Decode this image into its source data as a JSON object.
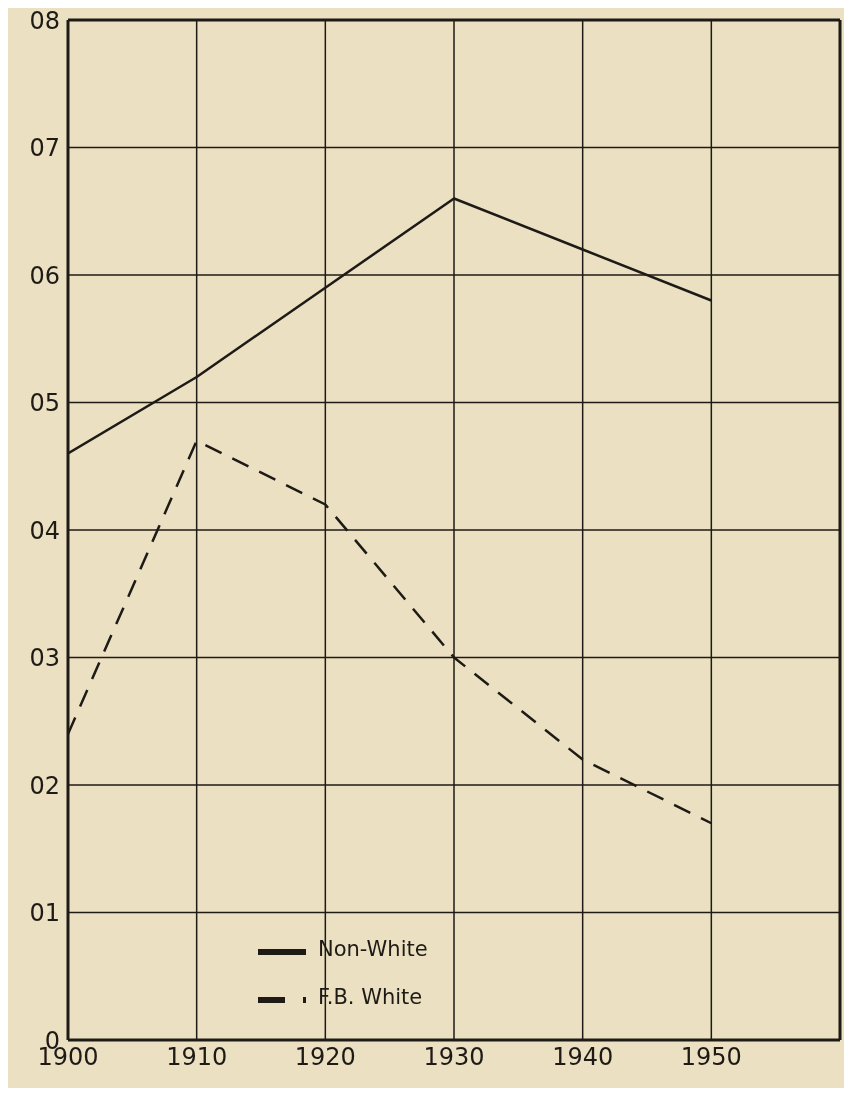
{
  "chart_data": {
    "type": "line",
    "x": [
      1900,
      1910,
      1920,
      1930,
      1940,
      1950
    ],
    "series": [
      {
        "name": "Non-White",
        "color": "#1e1a16",
        "line_style": "solid",
        "values": [
          4.6,
          5.2,
          5.9,
          6.6,
          6.2,
          5.8
        ]
      },
      {
        "name": "F.B. White",
        "color": "#1e1a16",
        "line_style": "dashed",
        "values": [
          2.4,
          4.7,
          4.2,
          3.0,
          2.2,
          1.7
        ]
      }
    ],
    "xlim": [
      1900,
      1960
    ],
    "xticks": [
      1900,
      1910,
      1920,
      1930,
      1940,
      1950
    ],
    "ylim": [
      0,
      8
    ],
    "yticks": [
      {
        "value": 0,
        "label": "0"
      },
      {
        "value": 1,
        "label": "01"
      },
      {
        "value": 2,
        "label": "02"
      },
      {
        "value": 3,
        "label": "03"
      },
      {
        "value": 4,
        "label": "04"
      },
      {
        "value": 5,
        "label": "05"
      },
      {
        "value": 6,
        "label": "06"
      },
      {
        "value": 7,
        "label": "07"
      },
      {
        "value": 8,
        "label": "08"
      }
    ],
    "grid": true,
    "legend": "bottom",
    "marker": "none"
  }
}
